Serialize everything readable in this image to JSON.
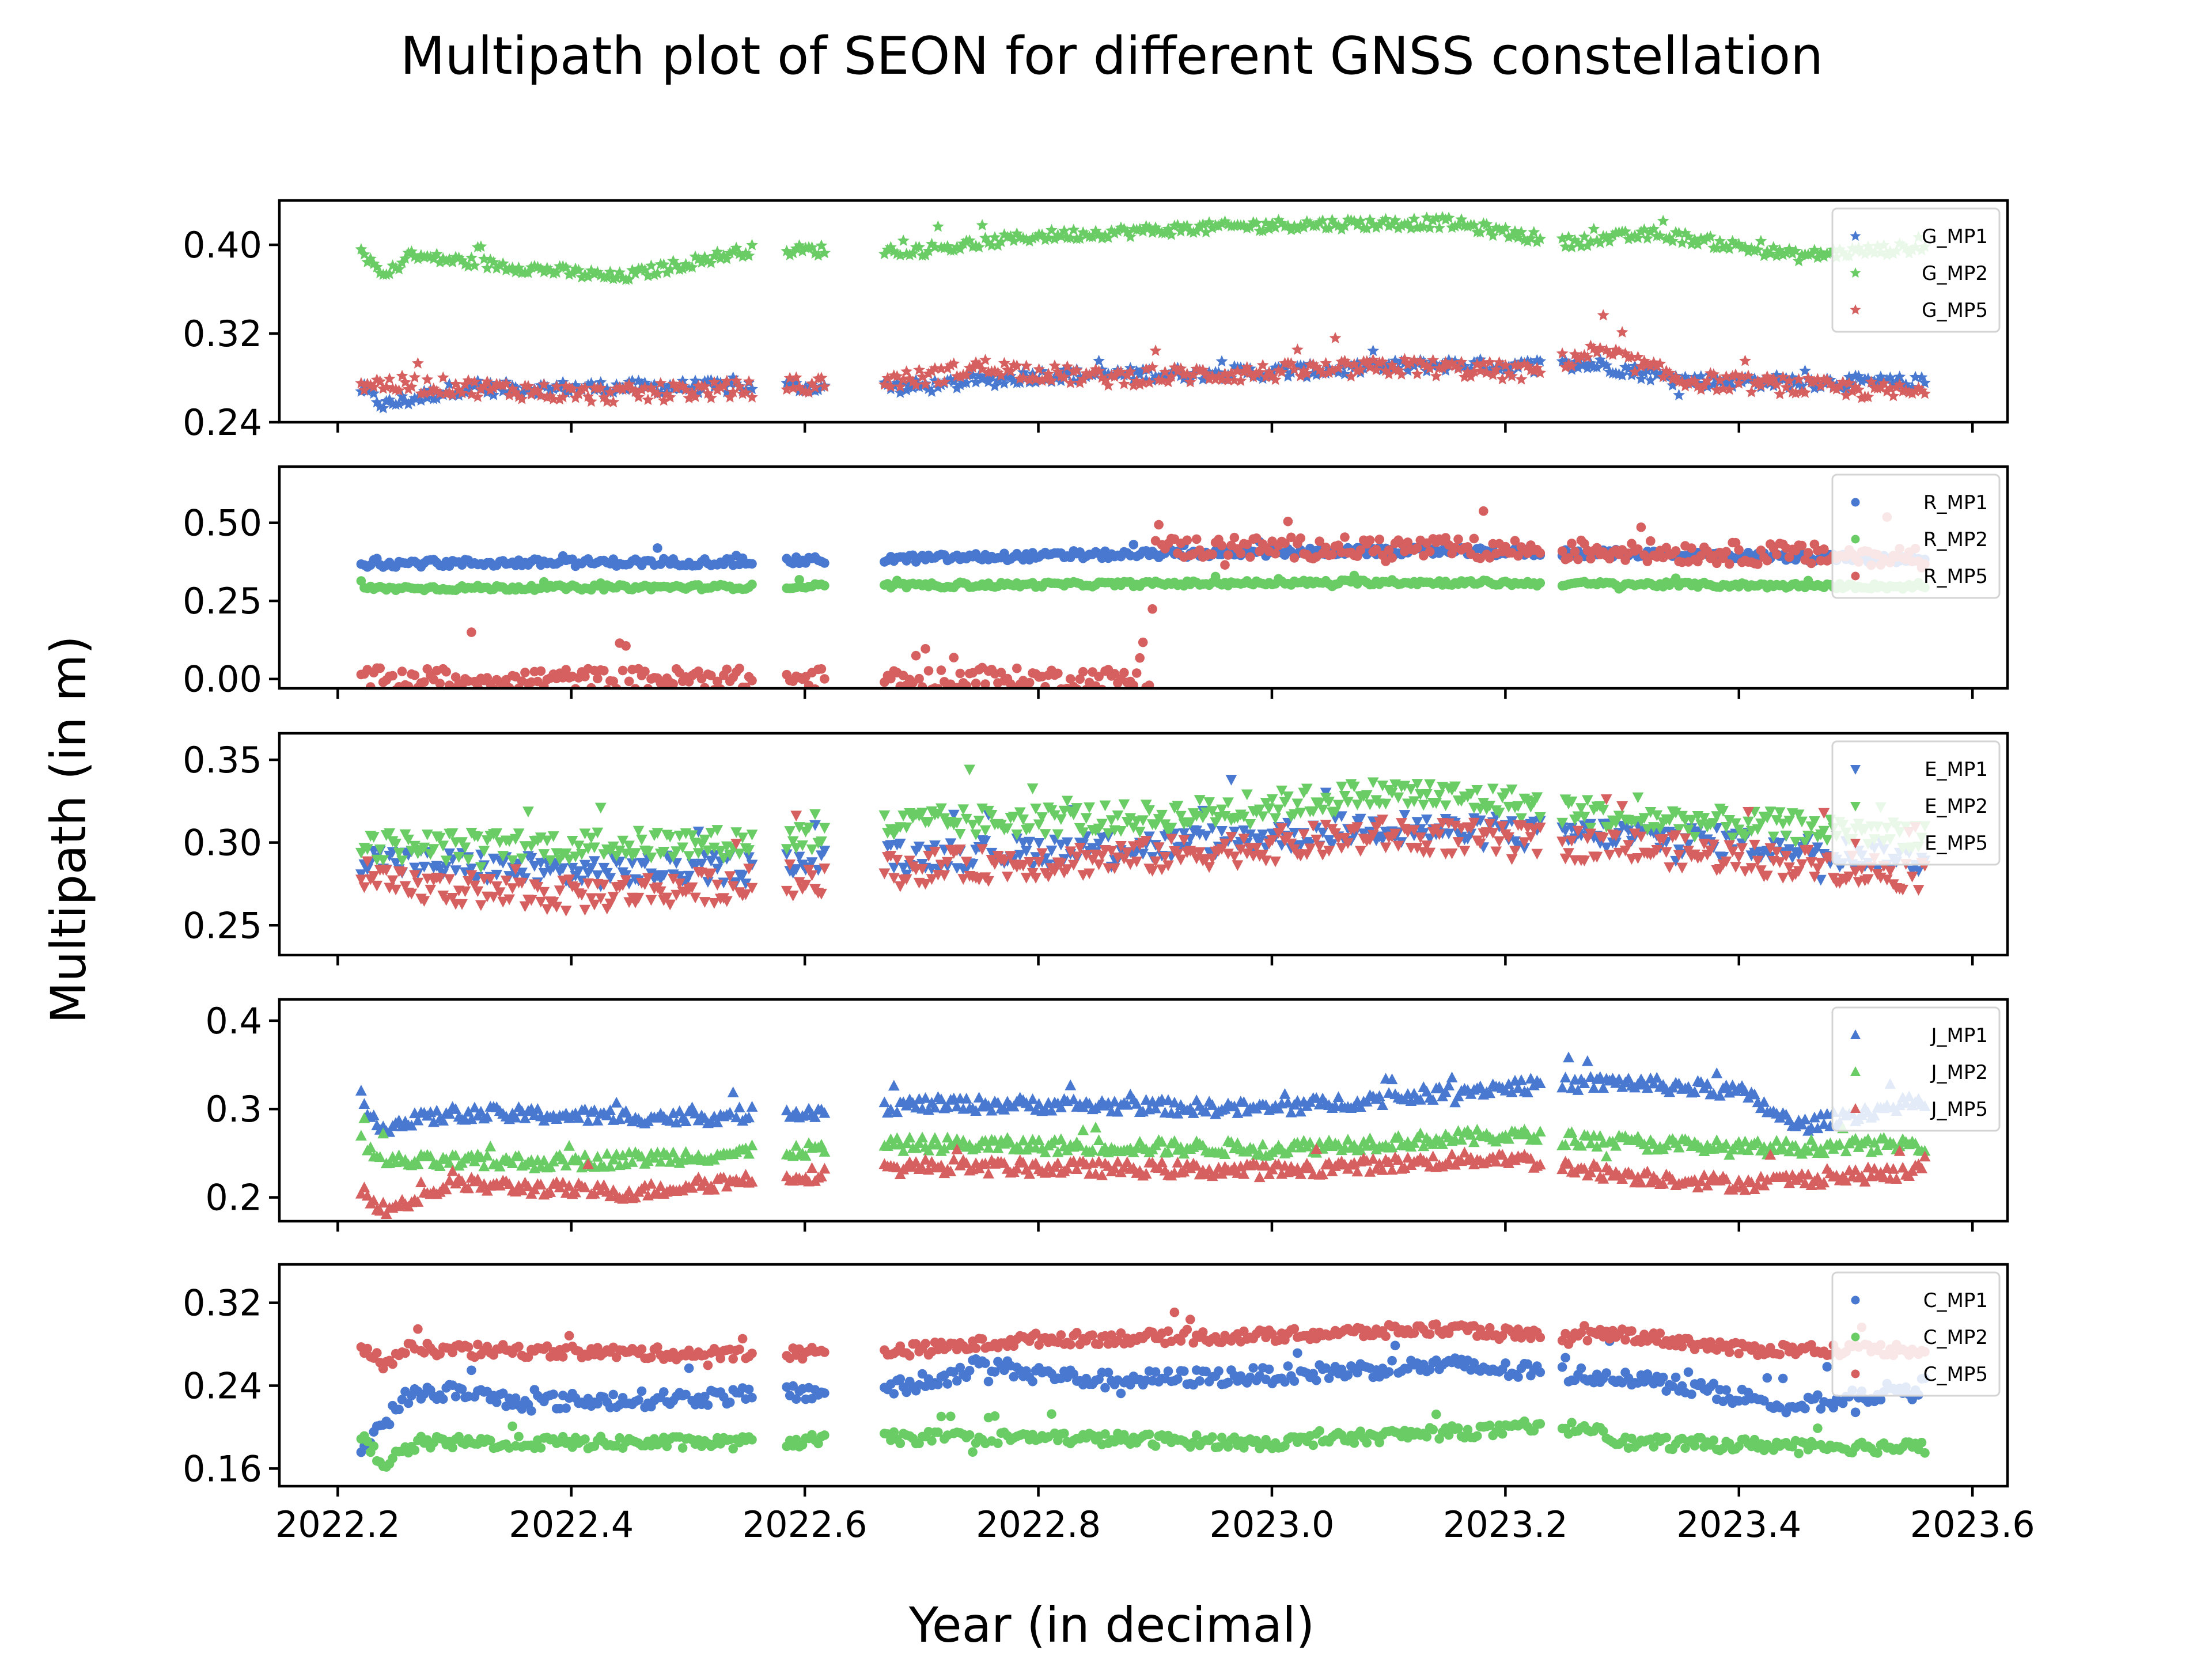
{
  "chart_data": {
    "type": "scatter",
    "title": "Multipath plot of SEON for different GNSS constellation",
    "xlabel": "Year (in decimal)",
    "ylabel": "Multipath (in m)",
    "xlim": [
      2022.15,
      2023.63
    ],
    "x_ticks": [
      2022.2,
      2022.4,
      2022.6,
      2022.8,
      2023.0,
      2023.2,
      2023.4,
      2023.6
    ],
    "x_tick_labels": [
      "2022.2",
      "2022.4",
      "2022.6",
      "2022.8",
      "2023.0",
      "2023.2",
      "2023.4",
      "2023.6"
    ],
    "legend_placement": "upper-right",
    "grid": false,
    "data_gaps": [
      [
        2022.555,
        2022.582
      ],
      [
        2022.617,
        2022.668
      ],
      [
        2023.232,
        2023.248
      ]
    ],
    "x_start": 2022.22,
    "x_end": 2023.56,
    "panels": [
      {
        "id": "gps",
        "ylim": [
          0.24,
          0.44
        ],
        "y_ticks": [
          0.24,
          0.32,
          0.4
        ],
        "y_tick_labels": [
          "0.24",
          "0.32",
          "0.40"
        ],
        "marker": "star",
        "series": [
          {
            "name": "G_MP1",
            "color": "#4878cf",
            "knots": [
              [
                2022.22,
                0.27
              ],
              [
                2022.24,
                0.255
              ],
              [
                2022.3,
                0.27
              ],
              [
                2022.5,
                0.272
              ],
              [
                2022.7,
                0.272
              ],
              [
                2022.8,
                0.282
              ],
              [
                2023.0,
                0.285
              ],
              [
                2023.15,
                0.292
              ],
              [
                2023.2,
                0.29
              ],
              [
                2023.28,
                0.292
              ],
              [
                2023.35,
                0.278
              ],
              [
                2023.56,
                0.275
              ]
            ],
            "noise": 0.006
          },
          {
            "name": "G_MP2",
            "color": "#6acc65",
            "knots": [
              [
                2022.22,
                0.395
              ],
              [
                2022.24,
                0.37
              ],
              [
                2022.26,
                0.39
              ],
              [
                2022.4,
                0.375
              ],
              [
                2022.44,
                0.37
              ],
              [
                2022.55,
                0.395
              ],
              [
                2022.7,
                0.395
              ],
              [
                2022.8,
                0.408
              ],
              [
                2023.0,
                0.418
              ],
              [
                2023.15,
                0.42
              ],
              [
                2023.25,
                0.402
              ],
              [
                2023.33,
                0.41
              ],
              [
                2023.45,
                0.39
              ],
              [
                2023.56,
                0.398
              ]
            ],
            "noise": 0.005
          },
          {
            "name": "G_MP5",
            "color": "#d65f5f",
            "knots": [
              [
                2022.22,
                0.275
              ],
              [
                2022.3,
                0.272
              ],
              [
                2022.42,
                0.265
              ],
              [
                2022.55,
                0.27
              ],
              [
                2022.7,
                0.28
              ],
              [
                2022.75,
                0.29
              ],
              [
                2022.85,
                0.28
              ],
              [
                2023.0,
                0.285
              ],
              [
                2023.12,
                0.29
              ],
              [
                2023.22,
                0.285
              ],
              [
                2023.28,
                0.305
              ],
              [
                2023.35,
                0.278
              ],
              [
                2023.56,
                0.266
              ]
            ],
            "noise": 0.008
          }
        ]
      },
      {
        "id": "glonass",
        "ylim": [
          -0.03,
          0.68
        ],
        "y_ticks": [
          0.0,
          0.25,
          0.5
        ],
        "y_tick_labels": [
          "0.00",
          "0.25",
          "0.50"
        ],
        "marker": "circle",
        "series": [
          {
            "name": "R_MP1",
            "color": "#4878cf",
            "knots": [
              [
                2022.22,
                0.37
              ],
              [
                2022.55,
                0.375
              ],
              [
                2022.75,
                0.39
              ],
              [
                2022.9,
                0.4
              ],
              [
                2023.1,
                0.41
              ],
              [
                2023.35,
                0.4
              ],
              [
                2023.56,
                0.38
              ]
            ],
            "noise": 0.012
          },
          {
            "name": "R_MP2",
            "color": "#6acc65",
            "knots": [
              [
                2022.22,
                0.29
              ],
              [
                2022.55,
                0.295
              ],
              [
                2022.9,
                0.305
              ],
              [
                2023.1,
                0.31
              ],
              [
                2023.56,
                0.295
              ]
            ],
            "noise": 0.008
          },
          {
            "name": "R_MP5",
            "color": "#d65f5f",
            "knots": [
              [
                2022.22,
                0.0
              ],
              [
                2022.895,
                0.0
              ],
              [
                2022.9,
                0.42
              ],
              [
                2023.1,
                0.42
              ],
              [
                2023.3,
                0.41
              ],
              [
                2023.56,
                0.39
              ]
            ],
            "noise": 0.035
          }
        ]
      },
      {
        "id": "galileo",
        "ylim": [
          0.232,
          0.366
        ],
        "y_ticks": [
          0.25,
          0.3,
          0.35
        ],
        "y_tick_labels": [
          "0.25",
          "0.30",
          "0.35"
        ],
        "marker": "triangle-down",
        "series": [
          {
            "name": "E_MP1",
            "color": "#4878cf",
            "knots": [
              [
                2022.22,
                0.29
              ],
              [
                2022.4,
                0.282
              ],
              [
                2022.55,
                0.285
              ],
              [
                2022.7,
                0.292
              ],
              [
                2022.9,
                0.298
              ],
              [
                2023.1,
                0.31
              ],
              [
                2023.2,
                0.305
              ],
              [
                2023.3,
                0.305
              ],
              [
                2023.56,
                0.29
              ]
            ],
            "noise": 0.009
          },
          {
            "name": "E_MP2",
            "color": "#6acc65",
            "knots": [
              [
                2022.22,
                0.298
              ],
              [
                2022.4,
                0.298
              ],
              [
                2022.55,
                0.3
              ],
              [
                2022.7,
                0.312
              ],
              [
                2022.9,
                0.315
              ],
              [
                2023.1,
                0.33
              ],
              [
                2023.2,
                0.325
              ],
              [
                2023.3,
                0.315
              ],
              [
                2023.56,
                0.305
              ]
            ],
            "noise": 0.009
          },
          {
            "name": "E_MP5",
            "color": "#d65f5f",
            "knots": [
              [
                2022.22,
                0.275
              ],
              [
                2022.4,
                0.268
              ],
              [
                2022.55,
                0.275
              ],
              [
                2022.7,
                0.285
              ],
              [
                2022.9,
                0.292
              ],
              [
                2023.1,
                0.305
              ],
              [
                2023.3,
                0.298
              ],
              [
                2023.56,
                0.28
              ]
            ],
            "noise": 0.01
          }
        ]
      },
      {
        "id": "qzss",
        "ylim": [
          0.173,
          0.424
        ],
        "y_ticks": [
          0.2,
          0.3,
          0.4
        ],
        "y_tick_labels": [
          "0.2",
          "0.3",
          "0.4"
        ],
        "marker": "triangle-up",
        "series": [
          {
            "name": "J_MP1",
            "color": "#4878cf",
            "knots": [
              [
                2022.22,
                0.3
              ],
              [
                2022.24,
                0.28
              ],
              [
                2022.3,
                0.295
              ],
              [
                2022.5,
                0.29
              ],
              [
                2022.7,
                0.305
              ],
              [
                2022.8,
                0.305
              ],
              [
                2023.0,
                0.3
              ],
              [
                2023.2,
                0.325
              ],
              [
                2023.3,
                0.33
              ],
              [
                2023.4,
                0.32
              ],
              [
                2023.45,
                0.28
              ],
              [
                2023.56,
                0.31
              ]
            ],
            "noise": 0.008
          },
          {
            "name": "J_MP2",
            "color": "#6acc65",
            "knots": [
              [
                2022.22,
                0.26
              ],
              [
                2022.24,
                0.24
              ],
              [
                2022.4,
                0.24
              ],
              [
                2022.55,
                0.25
              ],
              [
                2022.7,
                0.26
              ],
              [
                2023.0,
                0.255
              ],
              [
                2023.2,
                0.27
              ],
              [
                2023.4,
                0.255
              ],
              [
                2023.56,
                0.26
              ]
            ],
            "noise": 0.008
          },
          {
            "name": "J_MP5",
            "color": "#d65f5f",
            "knots": [
              [
                2022.22,
                0.21
              ],
              [
                2022.24,
                0.185
              ],
              [
                2022.3,
                0.215
              ],
              [
                2022.45,
                0.205
              ],
              [
                2022.55,
                0.22
              ],
              [
                2022.7,
                0.235
              ],
              [
                2023.0,
                0.23
              ],
              [
                2023.2,
                0.245
              ],
              [
                2023.3,
                0.225
              ],
              [
                2023.4,
                0.215
              ],
              [
                2023.56,
                0.23
              ]
            ],
            "noise": 0.008
          }
        ]
      },
      {
        "id": "beidou",
        "ylim": [
          0.143,
          0.357
        ],
        "y_ticks": [
          0.16,
          0.24,
          0.32
        ],
        "y_tick_labels": [
          "0.16",
          "0.24",
          "0.32"
        ],
        "marker": "circle",
        "series": [
          {
            "name": "C_MP1",
            "color": "#4878cf",
            "knots": [
              [
                2022.22,
                0.18
              ],
              [
                2022.26,
                0.23
              ],
              [
                2022.3,
                0.235
              ],
              [
                2022.35,
                0.225
              ],
              [
                2022.4,
                0.225
              ],
              [
                2022.55,
                0.23
              ],
              [
                2022.7,
                0.24
              ],
              [
                2022.75,
                0.26
              ],
              [
                2022.85,
                0.245
              ],
              [
                2023.0,
                0.25
              ],
              [
                2023.15,
                0.26
              ],
              [
                2023.25,
                0.25
              ],
              [
                2023.3,
                0.25
              ],
              [
                2023.45,
                0.22
              ],
              [
                2023.56,
                0.24
              ]
            ],
            "noise": 0.008
          },
          {
            "name": "C_MP2",
            "color": "#6acc65",
            "knots": [
              [
                2022.22,
                0.19
              ],
              [
                2022.24,
                0.165
              ],
              [
                2022.27,
                0.185
              ],
              [
                2022.55,
                0.185
              ],
              [
                2022.7,
                0.19
              ],
              [
                2022.8,
                0.19
              ],
              [
                2023.0,
                0.185
              ],
              [
                2023.15,
                0.195
              ],
              [
                2023.28,
                0.2
              ],
              [
                2023.3,
                0.185
              ],
              [
                2023.56,
                0.18
              ]
            ],
            "noise": 0.006
          },
          {
            "name": "C_MP5",
            "color": "#d65f5f",
            "knots": [
              [
                2022.22,
                0.28
              ],
              [
                2022.24,
                0.26
              ],
              [
                2022.26,
                0.275
              ],
              [
                2022.55,
                0.27
              ],
              [
                2022.7,
                0.275
              ],
              [
                2022.8,
                0.285
              ],
              [
                2023.0,
                0.288
              ],
              [
                2023.15,
                0.295
              ],
              [
                2023.25,
                0.285
              ],
              [
                2023.3,
                0.29
              ],
              [
                2023.4,
                0.275
              ],
              [
                2023.56,
                0.275
              ]
            ],
            "noise": 0.006
          }
        ]
      }
    ]
  }
}
